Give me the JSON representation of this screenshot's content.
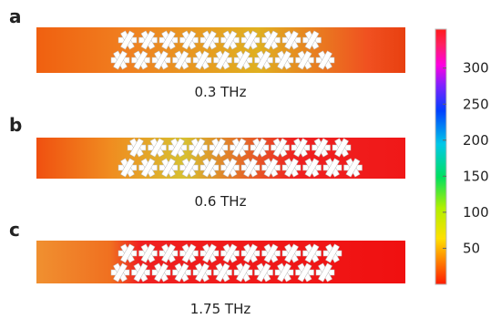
{
  "panels": [
    {
      "label": "a",
      "caption": "0.3 THz"
    },
    {
      "label": "b",
      "caption": "0.6 THz"
    },
    {
      "label": "c",
      "caption": "1.75 THz"
    }
  ],
  "colorbar": {
    "range": [
      0,
      354
    ],
    "ticks": [
      50,
      100,
      150,
      200,
      250,
      300
    ]
  }
}
